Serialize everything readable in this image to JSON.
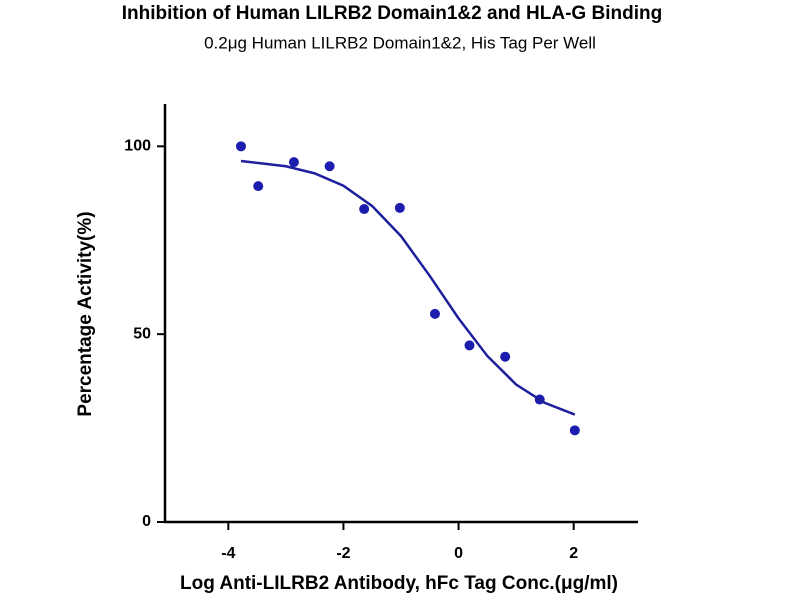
{
  "chart_data": {
    "type": "scatter",
    "title": "Inhibition of Human LILRB2 Domain1&2 and HLA-G Binding",
    "subtitle": "0.2μg Human LILRB2 Domain1&2, His Tag Per Well",
    "x_label": "Log Anti-LILRB2 Antibody, hFc Tag Conc.(μg/ml)",
    "y_label": "Percentage Activity(%)",
    "xlim": [
      -5.1,
      3.1
    ],
    "ylim": [
      0,
      111
    ],
    "xticks": [
      -4,
      -2,
      0,
      2
    ],
    "yticks": [
      0,
      50,
      100
    ],
    "series": [
      {
        "mode": "markers",
        "color": "#1c1cae",
        "x": [
          -3.78,
          -3.48,
          -2.86,
          -2.24,
          -1.64,
          -1.02,
          -0.41,
          0.19,
          0.81,
          1.41,
          2.02
        ],
        "values": [
          100,
          89.4,
          95.8,
          94.7,
          83.3,
          83.6,
          55.4,
          47,
          44,
          32.6,
          24.4
        ]
      },
      {
        "mode": "line",
        "color": "#1f1f9e",
        "x": [
          -3.78,
          -3,
          -2.5,
          -2,
          -1.5,
          -1,
          -0.5,
          0,
          0.5,
          1,
          1.5,
          2.02
        ],
        "values": [
          96.1,
          94.7,
          92.8,
          89.5,
          84.1,
          76.1,
          65.5,
          54.2,
          44.2,
          36.6,
          31.7,
          28.6
        ]
      }
    ]
  }
}
